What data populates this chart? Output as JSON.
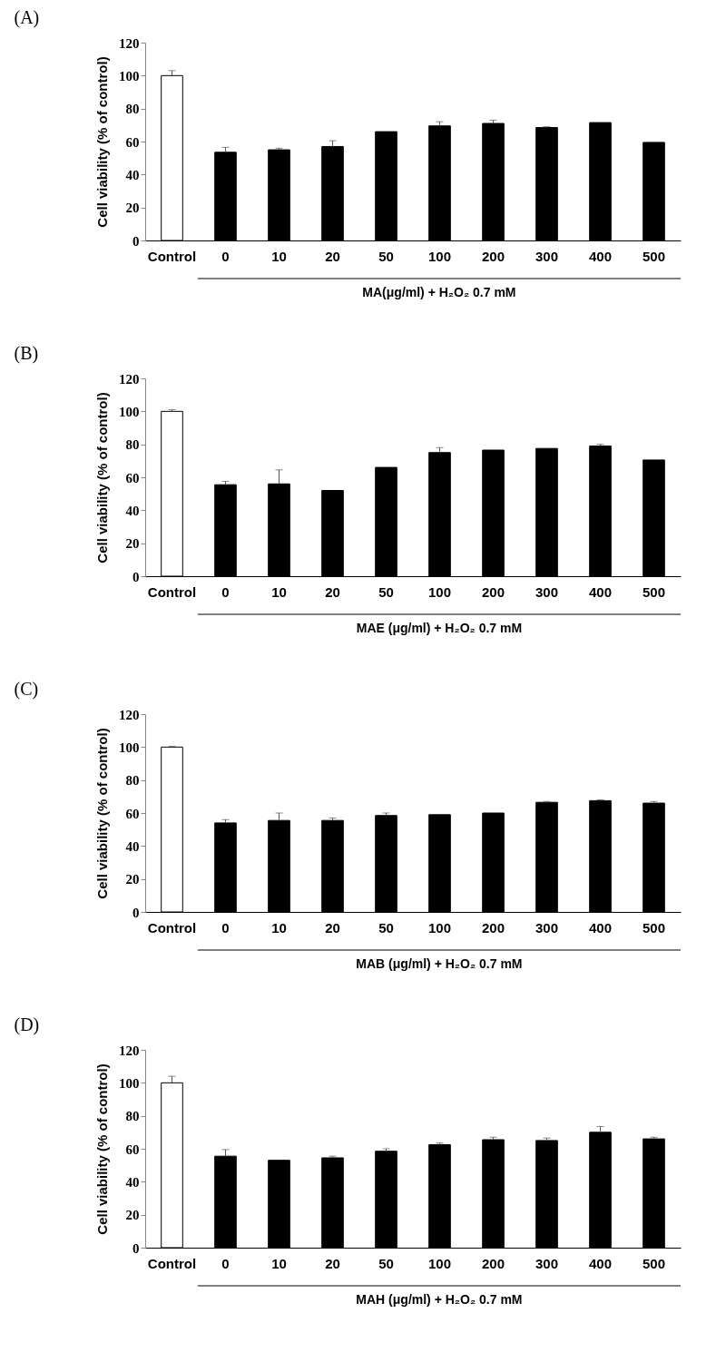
{
  "chart_data": [
    {
      "type": "bar",
      "title": "(A)",
      "ylabel": "Cell viability (% of control)",
      "xlabel": "MA(μg/ml) + H₂O₂ 0.7 mM",
      "categories": [
        "Control",
        "0",
        "10",
        "20",
        "50",
        "100",
        "200",
        "300",
        "400",
        "500"
      ],
      "values": [
        100,
        53.5,
        55,
        57,
        66,
        69.5,
        71,
        68.5,
        71.5,
        59.5
      ],
      "errors": [
        [
          100,
          103
        ],
        [
          53.5,
          56.5
        ],
        [
          55,
          56
        ],
        [
          57,
          60.5
        ],
        null,
        [
          69.5,
          72
        ],
        [
          71,
          73
        ],
        [
          68.5,
          69
        ],
        null,
        null
      ],
      "colors": [
        "#ffffff",
        "#000000",
        "#000000",
        "#000000",
        "#000000",
        "#000000",
        "#000000",
        "#000000",
        "#000000",
        "#000000"
      ],
      "ylim": [
        0,
        120
      ],
      "yticks": [
        0,
        20,
        40,
        60,
        80,
        100,
        120
      ],
      "grid": false,
      "legend": false
    },
    {
      "type": "bar",
      "title": "(B)",
      "ylabel": "Cell viability (% of control)",
      "xlabel": "MAE (μg/ml) + H₂O₂ 0.7 mM",
      "categories": [
        "Control",
        "0",
        "10",
        "20",
        "50",
        "100",
        "200",
        "300",
        "400",
        "500"
      ],
      "values": [
        100,
        55.5,
        56,
        52,
        66,
        75,
        76.5,
        77.5,
        79,
        70.5
      ],
      "errors": [
        [
          100,
          101
        ],
        [
          55.5,
          57.5
        ],
        [
          56,
          64.5
        ],
        null,
        null,
        [
          75,
          78
        ],
        null,
        null,
        [
          79,
          80
        ],
        null
      ],
      "colors": [
        "#ffffff",
        "#000000",
        "#000000",
        "#000000",
        "#000000",
        "#000000",
        "#000000",
        "#000000",
        "#000000",
        "#000000"
      ],
      "ylim": [
        0,
        120
      ],
      "yticks": [
        0,
        20,
        40,
        60,
        80,
        100,
        120
      ],
      "grid": false,
      "legend": false
    },
    {
      "type": "bar",
      "title": "(C)",
      "ylabel": "Cell viability (% of control)",
      "xlabel": "MAB (μg/ml) + H₂O₂ 0.7 mM",
      "categories": [
        "Control",
        "0",
        "10",
        "20",
        "50",
        "100",
        "200",
        "300",
        "400",
        "500"
      ],
      "values": [
        100,
        54,
        55.5,
        55.5,
        58.5,
        59,
        60,
        66.5,
        67.5,
        66
      ],
      "errors": [
        [
          100,
          100.5
        ],
        [
          54,
          56
        ],
        [
          55.5,
          60
        ],
        [
          55.5,
          57
        ],
        [
          58.5,
          60
        ],
        null,
        null,
        [
          66.5,
          67
        ],
        [
          67.5,
          68
        ],
        [
          66,
          67
        ]
      ],
      "colors": [
        "#ffffff",
        "#000000",
        "#000000",
        "#000000",
        "#000000",
        "#000000",
        "#000000",
        "#000000",
        "#000000",
        "#000000"
      ],
      "ylim": [
        0,
        120
      ],
      "yticks": [
        0,
        20,
        40,
        60,
        80,
        100,
        120
      ],
      "grid": false,
      "legend": false
    },
    {
      "type": "bar",
      "title": "(D)",
      "ylabel": "Cell viability (% of control)",
      "xlabel": "MAH (μg/ml) + H₂O₂ 0.7 mM",
      "categories": [
        "Control",
        "0",
        "10",
        "20",
        "50",
        "100",
        "200",
        "300",
        "400",
        "500"
      ],
      "values": [
        100,
        55.5,
        53,
        54.5,
        58.5,
        62.5,
        65.5,
        65,
        70,
        66
      ],
      "errors": [
        [
          100,
          104
        ],
        [
          55.5,
          59.5
        ],
        null,
        [
          54.5,
          55.5
        ],
        [
          58.5,
          60
        ],
        [
          62.5,
          63.5
        ],
        [
          65.5,
          67
        ],
        [
          65,
          66.5
        ],
        [
          70,
          73.5
        ],
        [
          66,
          67
        ]
      ],
      "colors": [
        "#ffffff",
        "#000000",
        "#000000",
        "#000000",
        "#000000",
        "#000000",
        "#000000",
        "#000000",
        "#000000",
        "#000000"
      ],
      "ylim": [
        0,
        120
      ],
      "yticks": [
        0,
        20,
        40,
        60,
        80,
        100,
        120
      ],
      "grid": false,
      "legend": false
    }
  ]
}
